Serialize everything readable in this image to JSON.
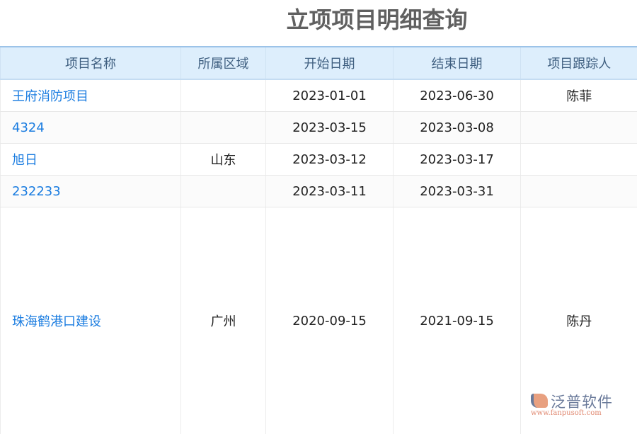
{
  "title": "立项项目明细查询",
  "columns": [
    "项目名称",
    "所属区域",
    "开始日期",
    "结束日期",
    "项目跟踪人"
  ],
  "rows": [
    {
      "name": "王府消防项目",
      "region": "",
      "start": "2023-01-01",
      "end": "2023-06-30",
      "tracker": "陈菲"
    },
    {
      "name": "4324",
      "region": "",
      "start": "2023-03-15",
      "end": "2023-03-08",
      "tracker": ""
    },
    {
      "name": "旭日",
      "region": "山东",
      "start": "2023-03-12",
      "end": "2023-03-17",
      "tracker": ""
    },
    {
      "name": "232233",
      "region": "",
      "start": "2023-03-11",
      "end": "2023-03-31",
      "tracker": ""
    },
    {
      "name": "珠海鹤港口建设",
      "region": "广州",
      "start": "2020-09-15",
      "end": "2021-09-15",
      "tracker": "陈丹"
    }
  ],
  "logo": {
    "name": "泛普软件",
    "url": "www.fanpusoft.com"
  },
  "colors": {
    "link": "#1a7ce0",
    "header_bg": "#ddeefc"
  }
}
